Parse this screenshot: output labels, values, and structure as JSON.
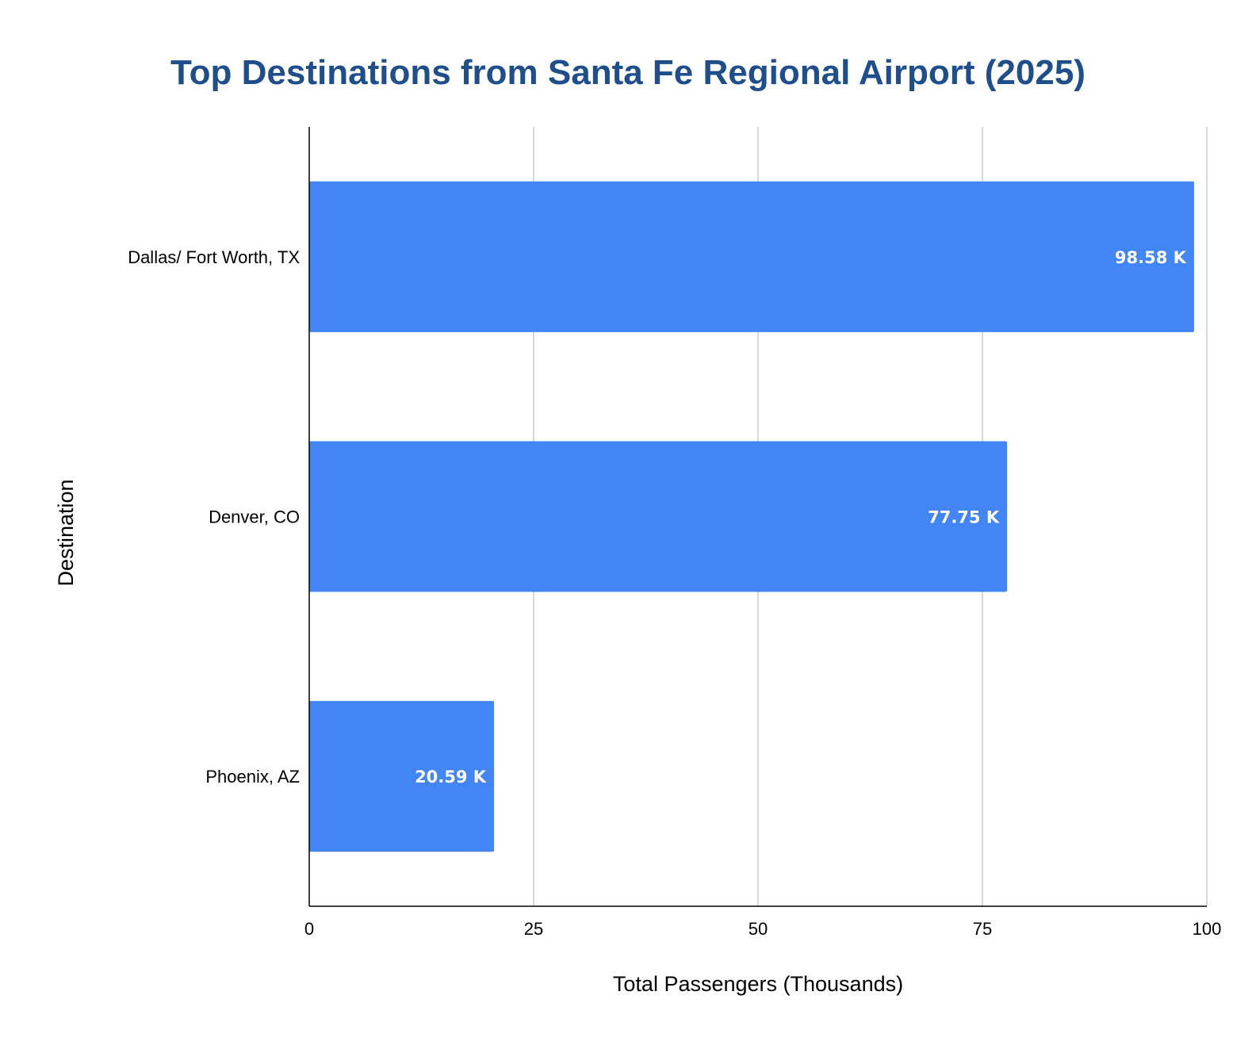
{
  "chart_data": {
    "type": "bar",
    "orientation": "horizontal",
    "title": "Top Destinations from Santa Fe Regional Airport (2025)",
    "xlabel": "Total Passengers (Thousands)",
    "ylabel": "Destination",
    "categories": [
      "Dallas/ Fort Worth, TX",
      "Denver, CO",
      "Phoenix, AZ"
    ],
    "values": [
      98.58,
      77.75,
      20.59
    ],
    "data_labels": [
      "98.58 K",
      "77.75 K",
      "20.59 K"
    ],
    "xlim": [
      0,
      100
    ],
    "x_ticks": [
      0,
      25,
      50,
      75,
      100
    ],
    "x_tick_labels": [
      "0",
      "25",
      "50",
      "75",
      "100"
    ],
    "grid": true,
    "legend": "none",
    "colors": {
      "bar": "#4285f4",
      "title": "#1f4e8c",
      "grid": "#cccccc",
      "axis": "#000000",
      "data_label": "#ffffff"
    }
  }
}
